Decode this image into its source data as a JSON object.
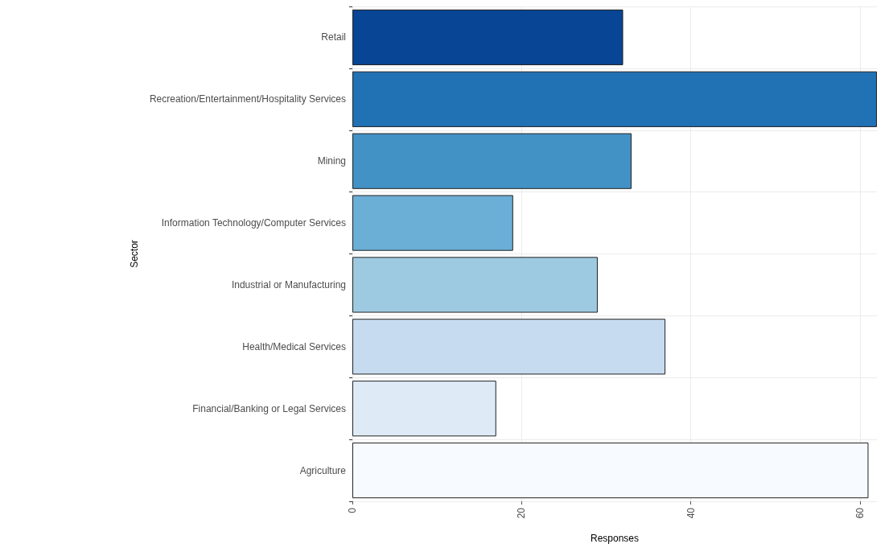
{
  "chart_data": {
    "type": "bar",
    "orientation": "horizontal",
    "xlabel": "Responses",
    "ylabel": "Sector",
    "categories": [
      "Retail",
      "Recreation/Entertainment/Hospitality Services",
      "Mining",
      "Information Technology/Computer Services",
      "Industrial or Manufacturing",
      "Health/Medical Services",
      "Financial/Banking or Legal Services",
      "Agriculture"
    ],
    "values": [
      32,
      62,
      33,
      19,
      29,
      37,
      17,
      61
    ],
    "colors": [
      "#084594",
      "#2171b5",
      "#4292c6",
      "#6baed6",
      "#9ecae1",
      "#c6dbef",
      "#deebf7",
      "#f7fbff"
    ],
    "xlim": [
      0,
      62
    ],
    "xticks": [
      0,
      20,
      40,
      60
    ],
    "grid": true
  }
}
